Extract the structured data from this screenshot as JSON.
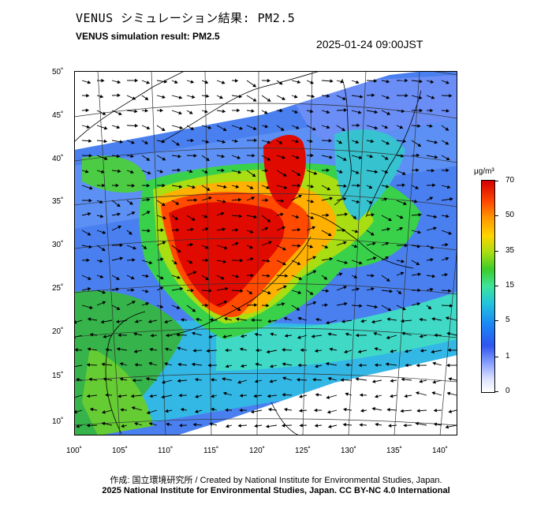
{
  "header": {
    "title_jp": "VENUS シミュレーション結果: PM2.5",
    "title_en": "VENUS simulation result: PM2.5",
    "timestamp": "2025-01-24 09:00JST"
  },
  "map": {
    "lat_labels": [
      "50˚",
      "45˚",
      "40˚",
      "35˚",
      "30˚",
      "25˚",
      "20˚",
      "15˚",
      "10˚"
    ],
    "lon_labels": [
      "100˚",
      "105˚",
      "110˚",
      "115˚",
      "120˚",
      "125˚",
      "130˚",
      "135˚",
      "140˚"
    ],
    "lat_range": [
      10,
      50
    ],
    "lon_range": [
      100,
      140
    ],
    "variable": "PM2.5"
  },
  "legend": {
    "unit": "μg/m³",
    "ticks": [
      "70",
      "50",
      "35",
      "15",
      "5",
      "1",
      "0"
    ],
    "colors": [
      "#d40000",
      "#ff4a00",
      "#ffd400",
      "#3ccc2a",
      "#22c4dc",
      "#2e55f0",
      "#ffffff"
    ]
  },
  "footer": {
    "credit": "作成: 国立環境研究所 / Created by National Institute for Environmental Studies, Japan.",
    "license": "2025 National Institute for Environmental Studies, Japan. CC BY-NC 4.0 International"
  }
}
